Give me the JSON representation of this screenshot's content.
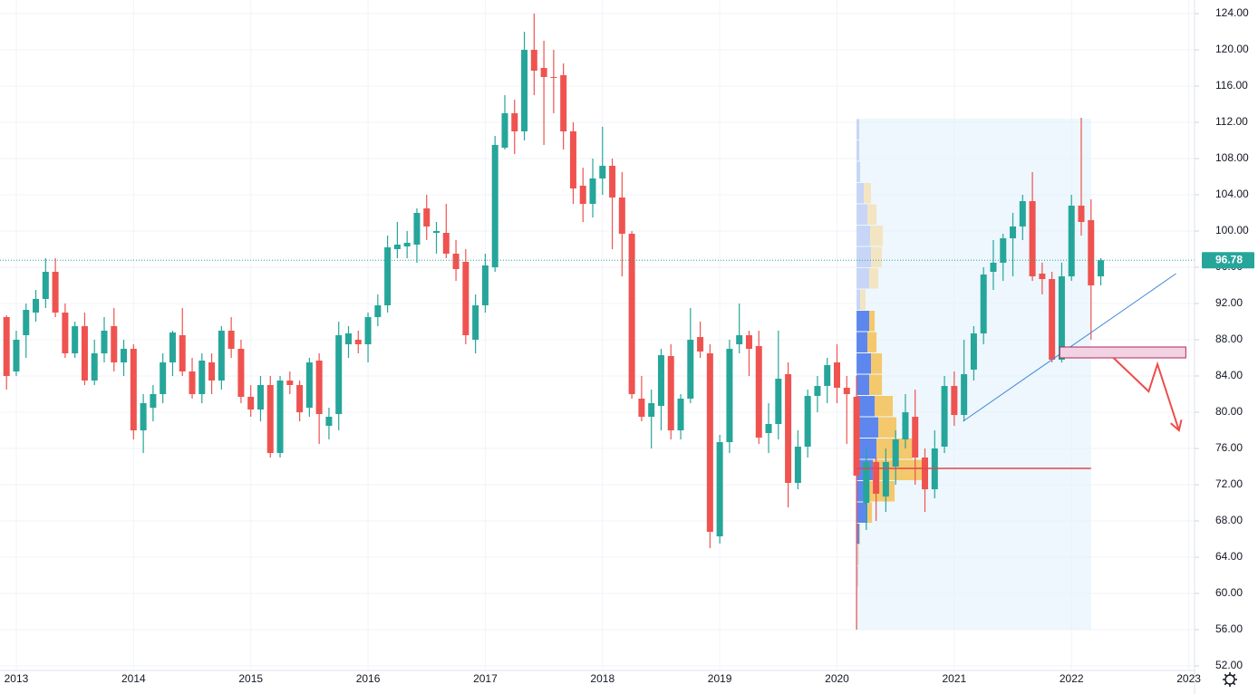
{
  "chart_data": {
    "type": "candlestick",
    "categories": [
      null,
      "2013",
      null,
      null,
      null,
      null,
      null,
      null,
      null,
      null,
      null,
      null,
      null,
      "2014",
      null,
      null,
      null,
      null,
      null,
      null,
      null,
      null,
      null,
      null,
      null,
      "2015",
      null,
      null,
      null,
      null,
      null,
      null,
      null,
      null,
      null,
      null,
      null,
      "2016",
      null,
      null,
      null,
      null,
      null,
      null,
      null,
      null,
      null,
      null,
      null,
      "2017",
      null,
      null,
      null,
      null,
      null,
      null,
      null,
      null,
      null,
      null,
      null,
      "2018",
      null,
      null,
      null,
      null,
      null,
      null,
      null,
      null,
      null,
      null,
      null,
      "2019",
      null,
      null,
      null,
      null,
      null,
      null,
      null,
      null,
      null,
      null,
      null,
      "2020",
      null,
      null,
      null,
      null,
      null,
      null,
      null,
      null,
      null,
      null,
      null,
      "2021",
      null,
      null,
      null,
      null,
      null,
      null,
      null,
      null,
      null,
      null,
      null,
      "2022",
      null,
      null,
      null,
      null,
      null,
      null,
      null,
      null,
      null,
      null,
      null,
      "2023"
    ],
    "open": [
      90.5,
      84.5,
      88.5,
      91,
      92.5,
      95.5,
      91,
      86.5,
      89.5,
      83.5,
      86.5,
      89.5,
      85.5,
      87,
      78,
      80.5,
      82,
      85.5,
      88.5,
      84.5,
      82,
      85.5,
      83.5,
      89,
      87,
      81.7,
      80.3,
      83,
      75.5,
      83.5,
      83,
      80.5,
      85.7,
      78.5,
      79.8,
      87.5,
      88,
      87.5,
      90.5,
      91.8,
      98,
      98.3,
      98.5,
      102.5,
      99.8,
      99.8,
      97.5,
      96.6,
      88,
      91.8,
      96,
      109.2,
      113,
      111,
      120,
      118,
      117,
      117.2,
      111,
      105,
      103,
      105.8,
      107.2,
      103.7,
      99.7,
      81.5,
      79.5,
      80.7,
      86.2,
      78,
      81.5,
      88.3,
      86.5,
      66.3,
      76.7,
      87.5,
      88.5,
      87.3,
      77.7,
      78.7,
      84.2,
      72.2,
      76.2,
      81.8,
      82.9,
      85.5,
      82.7,
      81.7,
      70,
      74.5,
      70.7,
      74,
      77,
      79.5,
      75,
      71.5,
      76.2,
      82.9,
      79.7,
      84.7,
      88.7,
      95.5,
      96.5,
      99.2,
      100.5,
      103.3,
      95.3,
      94.7,
      85.8,
      95,
      102.8,
      101.2,
      95,
      null,
      null,
      null,
      null,
      null,
      null,
      null,
      null,
      null
    ],
    "high": [
      90.7,
      89,
      92,
      93.5,
      97,
      97,
      92,
      90,
      91,
      88,
      90.5,
      91.5,
      88,
      87.5,
      82,
      83,
      86.5,
      89,
      91.5,
      86,
      86.5,
      86.5,
      89.5,
      90.5,
      88,
      83,
      84,
      84,
      84,
      84.5,
      83.5,
      86,
      86.5,
      80.5,
      90,
      89.5,
      89,
      91,
      93,
      99.5,
      101,
      100,
      102.5,
      104,
      101,
      103,
      99,
      98,
      93,
      97.5,
      110.5,
      115,
      114.5,
      122,
      124,
      121,
      120,
      118.5,
      112,
      107,
      108,
      111.5,
      108,
      106.5,
      100,
      84,
      82.5,
      87,
      87.5,
      82,
      91.5,
      90,
      87.5,
      77.5,
      88,
      92,
      89,
      89,
      81,
      89,
      85.5,
      78,
      82.5,
      84,
      86,
      87.5,
      84,
      84,
      76,
      75,
      76,
      78,
      82,
      82.5,
      76,
      78,
      84,
      84.5,
      88,
      89.5,
      96,
      99,
      99.7,
      102,
      104,
      106.5,
      96.5,
      95.5,
      96.5,
      104,
      112.5,
      103.5,
      97,
      null,
      null,
      null,
      null,
      null,
      null,
      null,
      null,
      null
    ],
    "low": [
      82.5,
      84,
      86,
      90,
      91.5,
      90.5,
      86,
      86,
      83,
      83,
      85.5,
      84.5,
      84,
      77,
      75.5,
      79,
      81,
      84,
      84,
      81.5,
      81,
      82,
      82.5,
      86,
      81,
      79.5,
      79,
      75,
      75,
      82,
      79,
      79.5,
      76.5,
      77,
      78,
      86,
      86.5,
      85.5,
      89.5,
      91,
      97,
      97,
      96.5,
      99,
      97.5,
      97,
      94.5,
      87.5,
      86.5,
      91,
      95.5,
      109,
      108.5,
      110,
      115,
      109.5,
      113,
      109,
      103,
      101,
      101.5,
      104,
      98,
      95,
      81.5,
      79,
      76,
      78,
      77,
      77,
      81,
      86,
      65,
      65.5,
      75.5,
      86.5,
      84,
      76.5,
      75.5,
      77,
      69.5,
      71.5,
      75,
      80,
      81,
      81,
      76.5,
      56,
      67,
      68,
      69,
      72,
      76,
      72,
      69,
      70.5,
      75.5,
      78.5,
      79,
      83.5,
      87.5,
      93.5,
      94.5,
      95,
      99,
      94.5,
      93,
      85.5,
      85.5,
      94.5,
      99.5,
      88,
      94,
      null,
      null,
      null,
      null,
      null,
      null,
      null,
      null,
      null
    ],
    "close": [
      84,
      88,
      91.3,
      92.5,
      95.5,
      91,
      86.5,
      89.5,
      83.5,
      86.5,
      89,
      85.5,
      87,
      78,
      81,
      82,
      85.5,
      88.8,
      84.5,
      82,
      85.7,
      83.5,
      89,
      87,
      81.7,
      80.3,
      83,
      75.5,
      83.5,
      83,
      80,
      85.5,
      79.8,
      79.5,
      88.5,
      88.7,
      87.5,
      90.5,
      91.8,
      98.2,
      98.5,
      98.7,
      102,
      100.5,
      100,
      97.5,
      95.8,
      88.5,
      91.8,
      96.2,
      109.5,
      113,
      111,
      120,
      117.7,
      117,
      116.9,
      111,
      104.7,
      103,
      105.8,
      107.2,
      103.7,
      99.7,
      82,
      79.5,
      81,
      86.3,
      78,
      81.5,
      88,
      86.7,
      66.8,
      76.7,
      87,
      88.5,
      87,
      77.2,
      78.7,
      83.7,
      72.2,
      76.2,
      81.8,
      82.9,
      85.2,
      82.7,
      82,
      73,
      74.5,
      71,
      74.5,
      77,
      80,
      75,
      71.5,
      76,
      82.9,
      79.7,
      84.2,
      88.7,
      95.2,
      96.5,
      99.2,
      100.5,
      103.3,
      95,
      94.7,
      85.8,
      95,
      102.8,
      101,
      94,
      96.78,
      null,
      null,
      null,
      null,
      null,
      null,
      null,
      null,
      null
    ],
    "up_color": "#26a69a",
    "down_color": "#ef5350",
    "ylim": [
      51.5,
      125.5
    ],
    "yticks": [
      {
        "value": 52,
        "label": "52.00"
      },
      {
        "value": 56,
        "label": "56.00"
      },
      {
        "value": 60,
        "label": "60.00"
      },
      {
        "value": 64,
        "label": "64.00"
      },
      {
        "value": 68,
        "label": "68.00"
      },
      {
        "value": 72,
        "label": "72.00"
      },
      {
        "value": 76,
        "label": "76.00"
      },
      {
        "value": 80,
        "label": "80.00"
      },
      {
        "value": 84,
        "label": "84.00"
      },
      {
        "value": 88,
        "label": "88.00"
      },
      {
        "value": 92,
        "label": "92.00"
      },
      {
        "value": 96,
        "label": "96.00"
      },
      {
        "value": 100,
        "label": "100.00"
      },
      {
        "value": 104,
        "label": "104.00"
      },
      {
        "value": 108,
        "label": "108.00"
      },
      {
        "value": 112,
        "label": "112.00"
      },
      {
        "value": 116,
        "label": "116.00"
      },
      {
        "value": 120,
        "label": "120.00"
      },
      {
        "value": 124,
        "label": "124.00"
      }
    ],
    "grid": true,
    "last_price": 96.78,
    "range": {
      "x": [
        87,
        111
      ],
      "y": [
        56,
        112.4
      ],
      "color": "#e1f1fb"
    },
    "volume_profile": {
      "bins": [
        56,
        58.35,
        60.7,
        63.05,
        65.4,
        67.75,
        70.1,
        72.45,
        74.8,
        77.15,
        79.5,
        81.85,
        84.2,
        86.55,
        88.9,
        91.25,
        93.6,
        95.95,
        98.3,
        100.65,
        103,
        105.35,
        107.7,
        110.05,
        112.4
      ],
      "up": [
        1,
        1,
        2,
        2,
        3,
        12,
        14,
        18,
        22,
        24,
        20,
        14,
        16,
        12,
        14,
        4,
        14,
        16,
        15,
        12,
        8,
        4,
        3,
        3
      ],
      "down": [
        0,
        0,
        0,
        1,
        1,
        5,
        28,
        55,
        40,
        20,
        20,
        14,
        12,
        10,
        6,
        6,
        10,
        12,
        14,
        10,
        8,
        0,
        0,
        0
      ],
      "value_area": [
        65.4,
        91.25
      ],
      "up_color": "#5d87ee",
      "down_color": "#f4c86c",
      "outside_up_color": "#c7d5f6",
      "outside_down_color": "#f3e5c2"
    },
    "poc": {
      "value": 73.8,
      "color": "#e0454f"
    },
    "trendline": {
      "x": [
        97.9,
        119.7
      ],
      "y": [
        79,
        95.3
      ],
      "color": "#3f86d6"
    },
    "zone": {
      "x": [
        107.8,
        120.7
      ],
      "y": [
        86,
        87.2
      ],
      "color": "#f2d3e3",
      "border": "#b0255d"
    },
    "arrow": {
      "x": [
        113.3,
        116.9,
        117.8,
        120
      ],
      "y": [
        86,
        82.3,
        85.3,
        78
      ],
      "color": "#ef4b4b"
    }
  }
}
